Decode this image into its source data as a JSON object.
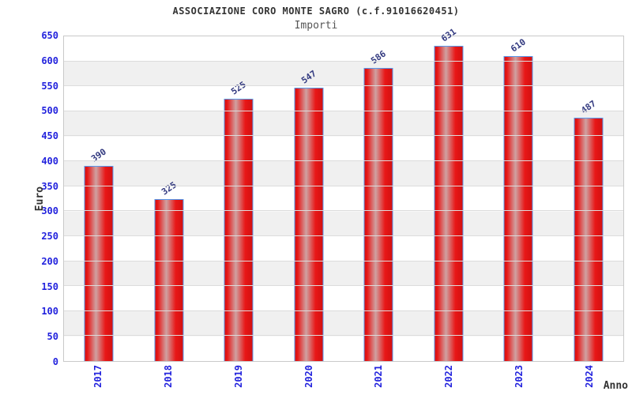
{
  "chart_data": {
    "type": "bar",
    "title": "ASSOCIAZIONE CORO MONTE SAGRO (c.f.91016620451)",
    "subtitle": "Importi",
    "xlabel": "Anno",
    "ylabel": "Euro",
    "categories": [
      "2017",
      "2018",
      "2019",
      "2020",
      "2021",
      "2022",
      "2023",
      "2024"
    ],
    "values": [
      390,
      325,
      525,
      547,
      586,
      631,
      610,
      487
    ],
    "ylim": [
      0,
      650
    ],
    "ytick_step": 50,
    "legend": "none",
    "grid": "alternating-horizontal-bands",
    "value_labels_rotated": true,
    "colors": {
      "bar_fill": "#e81717",
      "bar_highlight": "#cfa2a2",
      "bar_edge_dark": "#d31111",
      "bar_border": "#5599ee",
      "tick_label": "#2222dd",
      "value_label": "#333a80",
      "band_light": "#ffffff",
      "band_dark": "#f0f0f0",
      "gridline": "#dcdcdc",
      "plot_border": "#c9c9c9",
      "title_color": "#333333",
      "subtitle_color": "#555555",
      "axis_title_color": "#333333"
    }
  }
}
